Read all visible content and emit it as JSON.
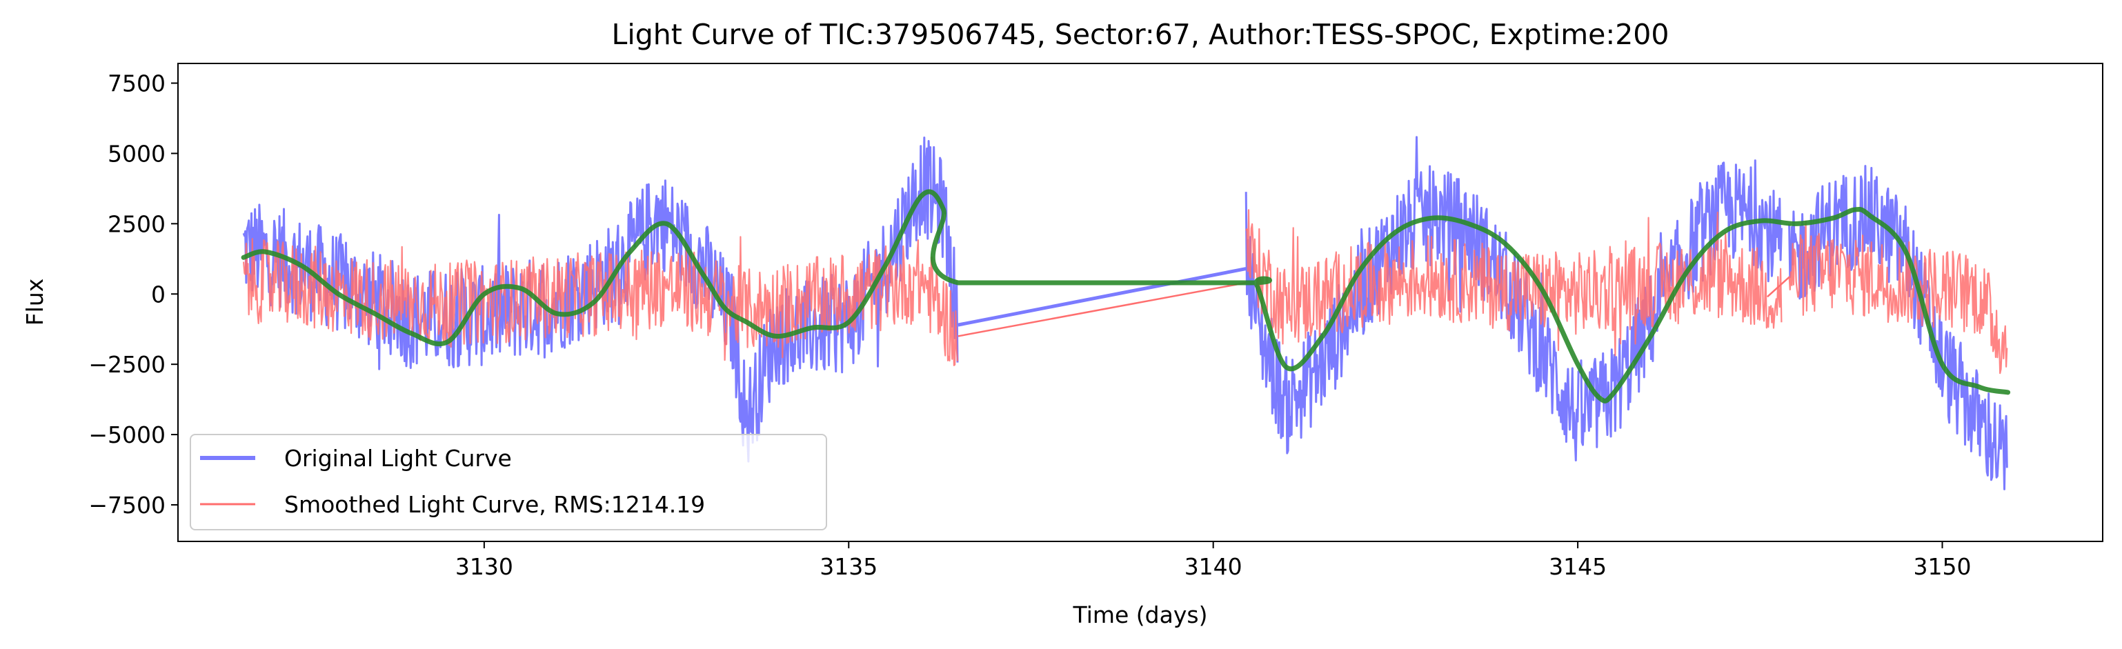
{
  "chart_data": {
    "type": "line",
    "title": "Light Curve of TIC:379506745, Sector:67, Author:TESS-SPOC, Exptime:200",
    "xlabel": "Time (days)",
    "ylabel": "Flux",
    "xlim": [
      3125.8,
      3152.2
    ],
    "ylim": [
      -8800,
      8200
    ],
    "xticks": [
      3130,
      3135,
      3140,
      3145,
      3150
    ],
    "yticks": [
      -7500,
      -5000,
      -2500,
      0,
      2500,
      5000,
      7500
    ],
    "xtick_labels": [
      "3130",
      "3135",
      "3140",
      "3145",
      "3150"
    ],
    "ytick_labels": [
      "−7500",
      "−5000",
      "−2500",
      "0",
      "2500",
      "5000",
      "7500"
    ],
    "grid": false,
    "legend_position": "lower-left",
    "series": [
      {
        "name": "Original Light Curve",
        "color": "#7b7bff",
        "noise_amp": 2400,
        "segments": [
          {
            "x": [
              3126.7,
              3127.2,
              3128.0,
              3129.0,
              3130.0,
              3131.0,
              3131.8,
              3132.4,
              3133.0,
              3133.4,
              3133.6,
              3134.0,
              3135.0,
              3135.5,
              3136.0,
              3136.3,
              3136.5
            ],
            "y": [
              1600,
              1300,
              400,
              -900,
              -800,
              -300,
              800,
              2800,
              1000,
              -1000,
              -4500,
              -1500,
              -1000,
              1000,
              4000,
              3000,
              -1200
            ]
          },
          {
            "x": [
              3140.45,
              3140.6,
              3141.0,
              3141.5,
              3142.0,
              3142.5,
              3143.0,
              3143.5,
              3144.0,
              3144.5,
              3145.0,
              3145.5,
              3146.0,
              3146.5,
              3147.0,
              3147.5,
              3147.8
            ],
            "y": [
              2000,
              -1000,
              -4000,
              -2500,
              0,
              2000,
              2800,
              2300,
              500,
              -2000,
              -4500,
              -3500,
              -1000,
              1500,
              3000,
              2700,
              1500
            ]
          },
          {
            "x": [
              3147.9,
              3148.5,
              3149.0,
              3149.5,
              3150.0,
              3150.5,
              3150.9
            ],
            "y": [
              1000,
              2500,
              2800,
              1500,
              -2500,
              -4500,
              -6000
            ]
          }
        ]
      },
      {
        "name": "Smoothed Light Curve, RMS:1214.19",
        "color": "#ff6e6e",
        "noise_amp": 2000,
        "segments": [
          {
            "x": [
              3126.7,
              3127.5,
              3128.5,
              3129.5,
              3130.5,
              3131.5,
              3132.4,
              3133.0,
              3133.6,
              3134.5,
              3135.5,
              3136.0,
              3136.5
            ],
            "y": [
              500,
              300,
              -200,
              -400,
              -200,
              0,
              300,
              0,
              -600,
              -200,
              200,
              500,
              -1500
            ]
          },
          {
            "x": [
              3140.45,
              3141.0,
              3142.0,
              3143.0,
              3144.0,
              3145.0,
              3146.0,
              3147.0,
              3147.8
            ],
            "y": [
              1500,
              -500,
              300,
              600,
              200,
              0,
              300,
              600,
              -100
            ]
          },
          {
            "x": [
              3147.9,
              3148.5,
              3149.5,
              3150.0,
              3150.5,
              3150.9
            ],
            "y": [
              600,
              800,
              400,
              200,
              0,
              -2000
            ]
          }
        ],
        "connectors": [
          {
            "x": [
              3136.5,
              3140.45
            ],
            "y": [
              -1500,
              400
            ]
          },
          {
            "x": [
              3147.6,
              3147.9
            ],
            "y": [
              -100,
              600
            ]
          }
        ]
      },
      {
        "name": "",
        "color": "#2a8a2a",
        "smooth": true,
        "x": [
          3126.7,
          3127.0,
          3127.5,
          3128.0,
          3128.5,
          3129.0,
          3129.5,
          3130.0,
          3130.5,
          3131.0,
          3131.5,
          3132.0,
          3132.5,
          3133.0,
          3133.3,
          3133.6,
          3134.0,
          3134.5,
          3135.0,
          3135.5,
          3136.0,
          3136.3,
          3136.5,
          3140.45,
          3140.6,
          3141.0,
          3141.5,
          3142.0,
          3142.5,
          3143.0,
          3143.5,
          3144.0,
          3144.5,
          3145.0,
          3145.3,
          3145.5,
          3146.0,
          3146.5,
          3147.0,
          3147.5,
          3148.0,
          3148.5,
          3148.8,
          3149.0,
          3149.5,
          3150.0,
          3150.5,
          3150.9
        ],
        "y": [
          1300,
          1500,
          1000,
          0,
          -700,
          -1400,
          -1700,
          0,
          200,
          -700,
          -300,
          1500,
          2500,
          700,
          -500,
          -1000,
          -1500,
          -1200,
          -1000,
          1000,
          3500,
          3000,
          400,
          400,
          300,
          -2600,
          -1500,
          800,
          2200,
          2700,
          2500,
          1800,
          200,
          -2500,
          -3700,
          -3500,
          -1500,
          800,
          2200,
          2600,
          2500,
          2700,
          3000,
          2800,
          1500,
          -2500,
          -3300,
          -3500
        ]
      }
    ]
  }
}
